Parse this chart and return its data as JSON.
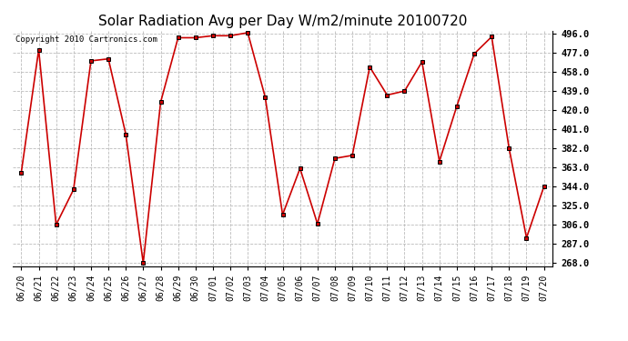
{
  "title": "Solar Radiation Avg per Day W/m2/minute 20100720",
  "copyright": "Copyright 2010 Cartronics.com",
  "labels": [
    "06/20",
    "06/21",
    "06/22",
    "06/23",
    "06/24",
    "06/25",
    "06/26",
    "06/27",
    "06/28",
    "06/29",
    "06/30",
    "07/01",
    "07/02",
    "07/03",
    "07/04",
    "07/05",
    "07/06",
    "07/07",
    "07/08",
    "07/09",
    "07/10",
    "07/11",
    "07/12",
    "07/13",
    "07/14",
    "07/15",
    "07/16",
    "07/17",
    "07/18",
    "07/19",
    "07/20"
  ],
  "values": [
    358,
    480,
    306,
    341,
    469,
    471,
    396,
    268,
    428,
    492,
    492,
    494,
    494,
    497,
    433,
    316,
    362,
    307,
    372,
    375,
    463,
    435,
    439,
    468,
    369,
    424,
    476,
    493,
    382,
    293,
    344
  ],
  "line_color": "#cc0000",
  "marker_color": "#000000",
  "bg_color": "#ffffff",
  "plot_bg_color": "#ffffff",
  "grid_color": "#bbbbbb",
  "ymin": 268.0,
  "ymax": 496.0,
  "yticks": [
    268.0,
    287.0,
    306.0,
    325.0,
    344.0,
    363.0,
    382.0,
    401.0,
    420.0,
    439.0,
    458.0,
    477.0,
    496.0
  ],
  "title_fontsize": 11,
  "copyright_fontsize": 6.5,
  "tick_fontsize": 7,
  "ytick_fontsize": 7.5
}
